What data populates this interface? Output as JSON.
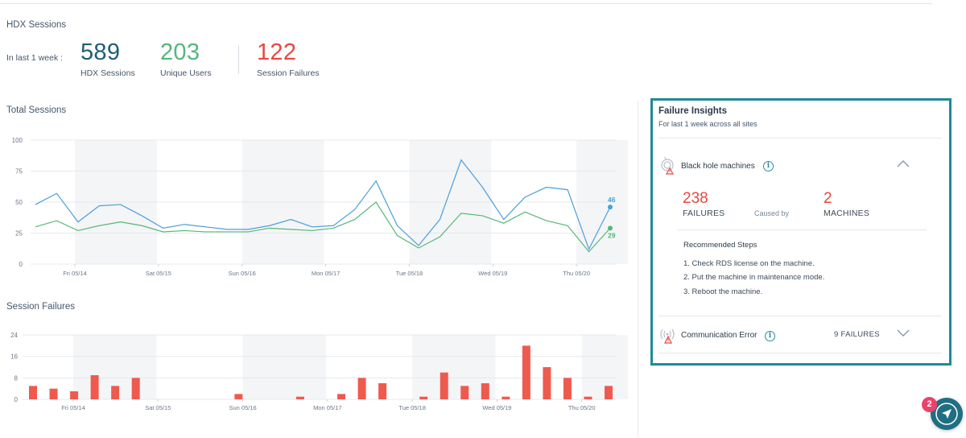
{
  "hdx": {
    "title": "HDX Sessions",
    "period": "In last 1 week :",
    "kpis": [
      {
        "value": "589",
        "label": "HDX Sessions",
        "color": "#1f5f73"
      },
      {
        "value": "203",
        "label": "Unique Users",
        "color": "#54b77a"
      },
      {
        "value": "122",
        "label": "Session Failures",
        "color": "#e8483f"
      }
    ]
  },
  "total_sessions": {
    "title": "Total Sessions"
  },
  "session_failures": {
    "title": "Session Failures"
  },
  "chart_data": [
    {
      "type": "line",
      "title": "Total Sessions",
      "ylim": [
        0,
        100
      ],
      "yticks": [
        0,
        25,
        50,
        75,
        100
      ],
      "x_tick_labels": [
        "Fri 05/14",
        "Sat 05/15",
        "Sun 05/16",
        "Mon 05/17",
        "Tue 05/18",
        "Wed 05/19",
        "Thu 05/20"
      ],
      "grid": true,
      "series": [
        {
          "color": "#4a9fdc",
          "end_label": "46",
          "values": [
            48,
            57,
            34,
            47,
            48,
            39,
            29,
            32,
            30,
            28,
            28,
            31,
            36,
            30,
            31,
            44,
            67,
            31,
            15,
            36,
            84,
            62,
            36,
            54,
            62,
            60,
            12,
            46
          ]
        },
        {
          "color": "#54b77a",
          "end_label": "29",
          "values": [
            30,
            35,
            27,
            31,
            34,
            31,
            26,
            27,
            26,
            26,
            26,
            29,
            28,
            27,
            29,
            36,
            50,
            23,
            13,
            22,
            41,
            39,
            33,
            42,
            35,
            31,
            10,
            29
          ]
        }
      ]
    },
    {
      "type": "bar",
      "title": "Session Failures",
      "ylim": [
        0,
        24
      ],
      "yticks": [
        0,
        8,
        16,
        24
      ],
      "x_tick_labels": [
        "Fri 05/14",
        "Sat 05/15",
        "Sun 05/16",
        "Mon 05/17",
        "Tue 05/18",
        "Wed 05/19",
        "Thu 05/20"
      ],
      "grid": true,
      "series": [
        {
          "color": "#ef5a4f",
          "values": [
            5,
            4,
            3,
            9,
            5,
            8,
            0,
            0,
            0,
            0,
            2,
            0,
            0,
            1,
            0,
            2,
            8,
            6,
            0,
            1,
            10,
            5,
            6,
            1,
            20,
            12,
            8,
            1,
            5
          ]
        }
      ]
    }
  ],
  "insights": {
    "title": "Failure Insights",
    "subtitle": "For last 1 week across all sites",
    "items": [
      {
        "label": "Black hole machines",
        "failures_value": "238",
        "failures_caption": "FAILURES",
        "caused_by": "Caused by",
        "machines_value": "2",
        "machines_caption": "MACHINES",
        "rec_title": "Recommended Steps",
        "steps": [
          "1.  Check RDS license on the machine.",
          "2.  Put the machine in maintenance mode.",
          "3.  Reboot the machine."
        ]
      },
      {
        "label": "Communication Error",
        "count": "9  FAILURES"
      }
    ]
  },
  "fab": {
    "badge": "2",
    "icon": "navigation-arrow-icon",
    "color": "#1f6f83"
  }
}
